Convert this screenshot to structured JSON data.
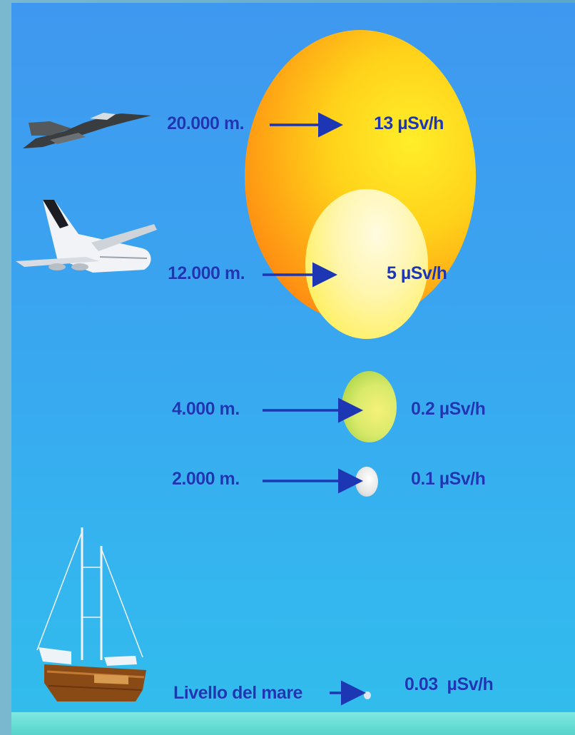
{
  "levels": [
    {
      "altitude": "20.000 m.",
      "dose": "13 µSv/h",
      "vehicle": "fighter-jet-icon"
    },
    {
      "altitude": "12.000 m.",
      "dose": "5 µSv/h",
      "vehicle": "airliner-icon"
    },
    {
      "altitude": "4.000 m.",
      "dose": "0.2 µSv/h"
    },
    {
      "altitude": "2.000 m.",
      "dose": "0.1 µSv/h"
    },
    {
      "altitude": "Livello del mare",
      "dose": "0.03  µSv/h",
      "vehicle": "sailboat-icon"
    }
  ],
  "colors": {
    "text": "#1c36b4",
    "sky_top": "#3f98ef",
    "sky_bottom": "#31bdec",
    "sea": "#6fe0d8"
  }
}
